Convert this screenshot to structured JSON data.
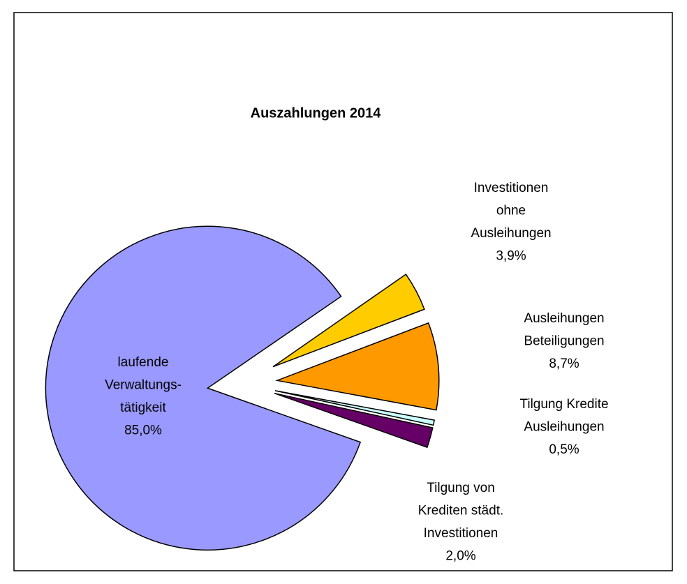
{
  "chart_data": {
    "type": "pie",
    "title": "Auszahlungen 2014",
    "categories": [
      [
        "laufende",
        "Verwaltungs-",
        "tätigkeit"
      ],
      [
        "Tilgung von",
        "Krediten städt.",
        "Investitionen"
      ],
      [
        "Tilgung Kredite",
        "Ausleihungen"
      ],
      [
        "Ausleihungen",
        "Beteiligungen"
      ],
      [
        "Investitionen",
        "ohne",
        "Ausleihungen"
      ]
    ],
    "values": [
      85.0,
      2.0,
      0.5,
      8.7,
      3.9
    ],
    "value_labels": [
      "85,0%",
      "2,0%",
      "0,5%",
      "8,7%",
      "3,9%"
    ],
    "colors": [
      "#9999ff",
      "#660066",
      "#ccffff",
      "#ff9900",
      "#ffcc00"
    ]
  }
}
